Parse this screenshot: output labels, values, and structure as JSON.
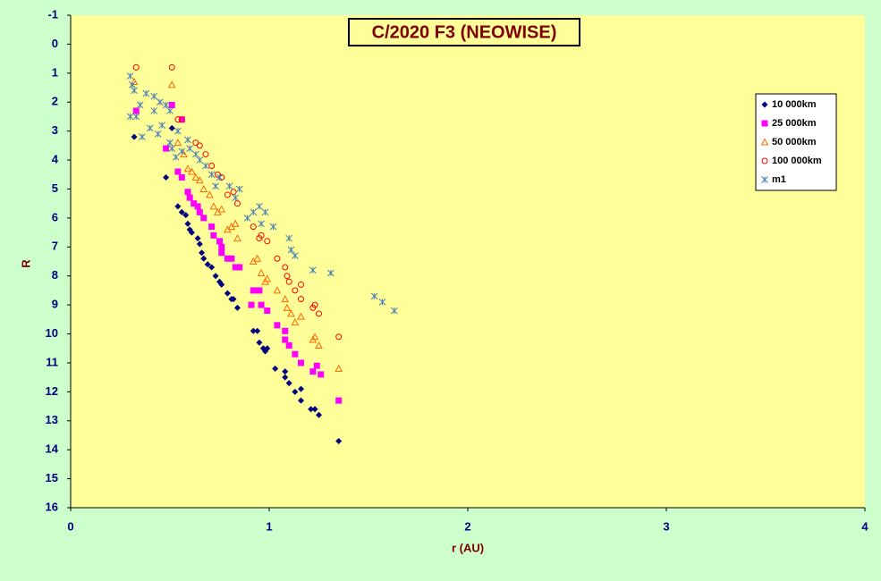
{
  "chart_data": {
    "type": "scatter",
    "title": "C/2020 F3 (NEOWISE)",
    "x_label": "r (AU)",
    "y_label": "R",
    "xlim": [
      0,
      4
    ],
    "xticks": [
      0,
      1,
      2,
      3,
      4
    ],
    "ylim": [
      16,
      -1
    ],
    "yticks": [
      -1,
      0,
      1,
      2,
      3,
      4,
      5,
      6,
      7,
      8,
      9,
      10,
      11,
      12,
      13,
      14,
      15,
      16
    ],
    "legend": "right",
    "series": [
      {
        "name": "10 000km",
        "color": "#000080",
        "marker": "diamond",
        "x": [
          0.32,
          0.51,
          0.48,
          0.54,
          0.56,
          0.58,
          0.59,
          0.6,
          0.61,
          0.64,
          0.65,
          0.66,
          0.67,
          0.69,
          0.71,
          0.73,
          0.75,
          0.76,
          0.79,
          0.81,
          0.82,
          0.84,
          0.92,
          0.94,
          0.95,
          0.97,
          0.98,
          0.99,
          1.03,
          1.08,
          1.08,
          1.1,
          1.13,
          1.16,
          1.16,
          1.21,
          1.23,
          1.25,
          1.35
        ],
        "values": [
          3.2,
          2.9,
          4.6,
          5.6,
          5.8,
          5.9,
          6.2,
          6.4,
          6.5,
          6.7,
          6.9,
          7.2,
          7.4,
          7.6,
          7.7,
          8.0,
          8.2,
          8.3,
          8.6,
          8.8,
          8.8,
          9.1,
          9.9,
          9.9,
          10.3,
          10.5,
          10.6,
          10.5,
          11.2,
          11.3,
          11.5,
          11.7,
          12.0,
          11.9,
          12.3,
          12.6,
          12.6,
          12.8,
          13.7
        ]
      },
      {
        "name": "25 000km",
        "color": "#ff00ff",
        "marker": "square",
        "x": [
          0.33,
          0.51,
          0.56,
          0.48,
          0.54,
          0.56,
          0.59,
          0.6,
          0.62,
          0.64,
          0.65,
          0.67,
          0.71,
          0.72,
          0.75,
          0.76,
          0.76,
          0.79,
          0.81,
          0.83,
          0.85,
          0.92,
          0.95,
          0.91,
          0.96,
          0.99,
          1.04,
          1.08,
          1.08,
          1.1,
          1.13,
          1.16,
          1.22,
          1.24,
          1.26,
          1.35
        ],
        "values": [
          2.3,
          2.1,
          2.6,
          3.6,
          4.4,
          4.6,
          5.1,
          5.3,
          5.5,
          5.6,
          5.8,
          6.0,
          6.3,
          6.6,
          6.8,
          7.0,
          7.2,
          7.4,
          7.4,
          7.7,
          7.7,
          8.5,
          8.5,
          9.0,
          9.0,
          9.2,
          9.7,
          9.9,
          10.2,
          10.4,
          10.7,
          11.0,
          11.3,
          11.1,
          11.4,
          12.3
        ]
      },
      {
        "name": "50 000km",
        "color": "#ff6600",
        "marker": "triangle",
        "x": [
          0.32,
          0.51,
          0.54,
          0.57,
          0.59,
          0.61,
          0.63,
          0.65,
          0.67,
          0.7,
          0.72,
          0.74,
          0.76,
          0.79,
          0.81,
          0.83,
          0.84,
          0.92,
          0.94,
          0.96,
          0.98,
          0.99,
          1.04,
          1.08,
          1.09,
          1.11,
          1.13,
          1.16,
          1.22,
          1.23,
          1.25,
          1.35
        ],
        "values": [
          1.3,
          1.4,
          3.4,
          3.8,
          4.3,
          4.4,
          4.6,
          4.7,
          5.0,
          5.2,
          5.6,
          5.8,
          5.7,
          6.4,
          6.3,
          6.2,
          6.7,
          7.5,
          7.4,
          7.9,
          8.2,
          8.1,
          8.5,
          8.8,
          9.1,
          9.3,
          9.6,
          9.4,
          10.2,
          10.1,
          10.4,
          11.2
        ]
      },
      {
        "name": "100 000km",
        "color": "#ff0000",
        "marker": "circle",
        "x": [
          0.33,
          0.51,
          0.54,
          0.56,
          0.63,
          0.65,
          0.68,
          0.71,
          0.74,
          0.76,
          0.79,
          0.82,
          0.84,
          0.92,
          0.95,
          0.96,
          0.99,
          1.04,
          1.08,
          1.09,
          1.1,
          1.13,
          1.16,
          1.16,
          1.22,
          1.23,
          1.25,
          1.35
        ],
        "values": [
          0.8,
          0.8,
          2.6,
          2.6,
          3.4,
          3.5,
          3.8,
          4.2,
          4.5,
          4.6,
          5.2,
          5.1,
          5.5,
          6.3,
          6.7,
          6.6,
          6.8,
          7.4,
          7.7,
          8.0,
          8.2,
          8.5,
          8.3,
          8.8,
          9.1,
          9.0,
          9.3,
          10.1
        ]
      },
      {
        "name": "m1",
        "color": "#4a7fb5",
        "marker": "asterisk",
        "x": [
          0.3,
          0.31,
          0.32,
          0.3,
          0.33,
          0.35,
          0.36,
          0.38,
          0.4,
          0.42,
          0.42,
          0.44,
          0.45,
          0.46,
          0.48,
          0.5,
          0.5,
          0.51,
          0.53,
          0.54,
          0.56,
          0.59,
          0.6,
          0.63,
          0.65,
          0.68,
          0.71,
          0.73,
          0.75,
          0.8,
          0.83,
          0.85,
          0.89,
          0.92,
          0.95,
          0.96,
          0.98,
          1.02,
          1.1,
          1.11,
          1.13,
          1.22,
          1.31,
          1.53,
          1.57,
          1.63
        ],
        "values": [
          1.1,
          1.4,
          1.6,
          2.5,
          2.5,
          2.1,
          3.2,
          1.7,
          2.9,
          1.8,
          2.3,
          3.1,
          2.0,
          2.8,
          2.1,
          3.4,
          2.3,
          3.6,
          3.9,
          3.0,
          3.7,
          3.3,
          3.6,
          3.8,
          4.0,
          4.2,
          4.5,
          4.9,
          4.6,
          4.9,
          5.3,
          5.0,
          6.0,
          5.8,
          5.6,
          6.2,
          5.8,
          6.3,
          6.7,
          7.1,
          7.3,
          7.8,
          7.9,
          8.7,
          8.9,
          9.2
        ]
      }
    ]
  }
}
